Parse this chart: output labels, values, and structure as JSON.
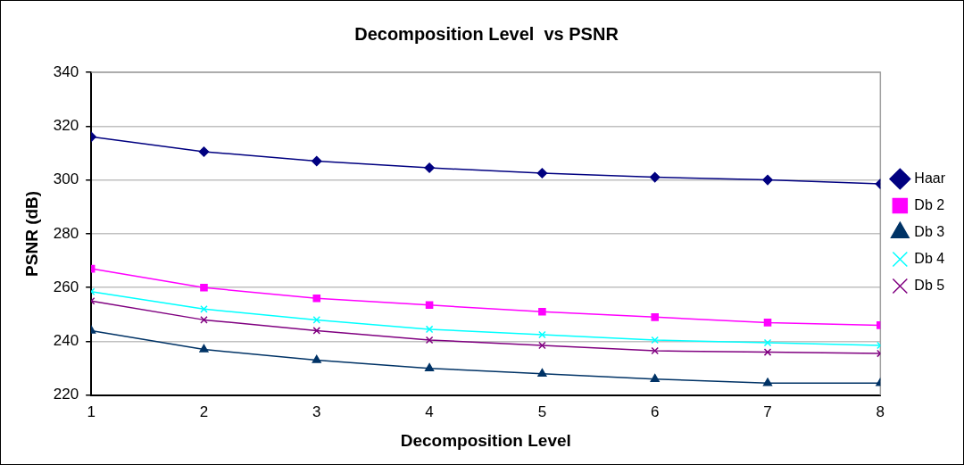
{
  "chart_data": {
    "type": "line",
    "title": "Decomposition Level  vs PSNR",
    "xlabel": "Decomposition Level",
    "ylabel": "PSNR (dB)",
    "x": [
      1,
      2,
      3,
      4,
      5,
      6,
      7,
      8
    ],
    "xlim": [
      1,
      8
    ],
    "xticks": [
      1,
      2,
      3,
      4,
      5,
      6,
      7,
      8
    ],
    "ylim": [
      220,
      340
    ],
    "yticks": [
      220,
      240,
      260,
      280,
      300,
      320,
      340
    ],
    "grid": "y",
    "legend": "right",
    "line_style": "solid",
    "series": [
      {
        "name": "Haar",
        "color": "#000080",
        "marker": "diamond",
        "values": [
          316,
          310.5,
          307,
          304.5,
          302.5,
          301,
          300,
          298.5
        ]
      },
      {
        "name": "Db 2",
        "color": "#ff00ff",
        "marker": "square",
        "values": [
          267,
          260,
          256,
          253.5,
          251,
          249,
          247,
          246
        ]
      },
      {
        "name": "Db 3",
        "color": "#003366",
        "marker": "triangle",
        "values": [
          244,
          237,
          233,
          230,
          228,
          226,
          224.5,
          224.5
        ]
      },
      {
        "name": "Db 4",
        "color": "#00ffff",
        "marker": "cross",
        "values": [
          258.5,
          252,
          248,
          244.5,
          242.5,
          240.5,
          239.5,
          238.5
        ]
      },
      {
        "name": "Db 5",
        "color": "#800080",
        "marker": "cross",
        "values": [
          255,
          248,
          244,
          240.5,
          238.5,
          236.5,
          236,
          235.5
        ]
      }
    ]
  }
}
